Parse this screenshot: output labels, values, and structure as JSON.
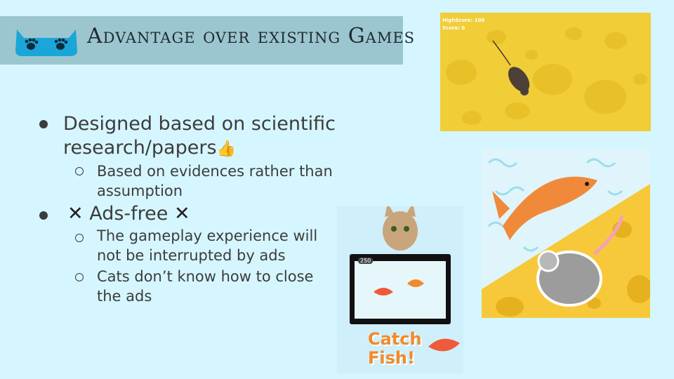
{
  "title": "Advantage over existing Games",
  "bullets": [
    {
      "text": "Designed based on scientific research/papers",
      "thumb": "👍",
      "sub": [
        "Based on evidences rather than assumption"
      ]
    },
    {
      "x_left": "✕",
      "text": "Ads-free",
      "x_right": "✕",
      "sub": [
        "The gameplay experience will not be interrupted by ads",
        "Cats don’t know how to close the ads"
      ]
    }
  ],
  "screenshots": {
    "mouse_game": {
      "highscore": "HighScore: 100",
      "score": "Score: 0"
    },
    "catch_fish": {
      "score": "250",
      "title": "Catch Fish!"
    }
  },
  "colors": {
    "background": "#d6f6ff",
    "title_bar": "#9cc6cf",
    "cheese": "#f4d54a",
    "fish": "#f08a3a"
  }
}
